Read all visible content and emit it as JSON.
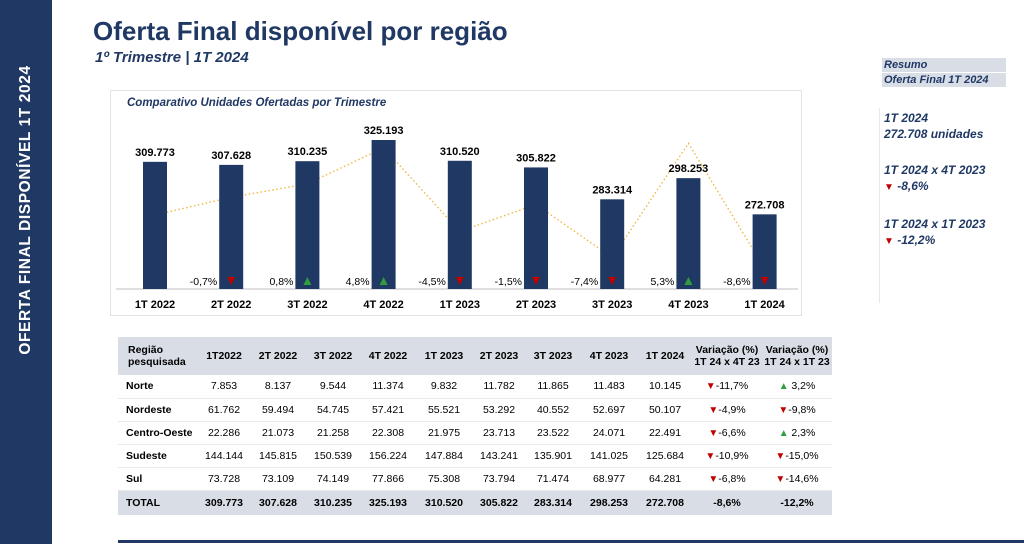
{
  "side_label": "OFERTA FINAL DISPONÍVEL   1T 2024",
  "header": {
    "title": "Oferta Final disponível por região",
    "subtitle": "1º Trimestre | 1T 2024"
  },
  "summary": {
    "head1": "Resumo",
    "head2": "Oferta Final  1T 2024",
    "block1_line1": "1T 2024",
    "block1_line2": "272.708  unidades",
    "block2_label": "1T 2024 x 4T 2023",
    "block2_value": "-8,6%",
    "block3_label": "1T 2024 x 1T 2023",
    "block3_value": "-12,2%"
  },
  "chart_data": {
    "type": "bar",
    "title": "Comparativo Unidades Ofertadas por Trimestre",
    "categories": [
      "1T 2022",
      "2T 2022",
      "3T 2022",
      "4T 2022",
      "1T 2023",
      "2T 2023",
      "3T 2023",
      "4T 2023",
      "1T 2024"
    ],
    "values": [
      309773,
      307628,
      310235,
      325193,
      310520,
      305822,
      283314,
      298253,
      272708
    ],
    "value_labels": [
      "309.773",
      "307.628",
      "310.235",
      "325.193",
      "310.520",
      "305.822",
      "283.314",
      "298.253",
      "272.708"
    ],
    "variation_labels": [
      "",
      "-0,7%",
      "0,8%",
      "4,8%",
      "-4,5%",
      "-1,5%",
      "-7,4%",
      "5,3%",
      "-8,6%"
    ],
    "variation_direction": [
      "",
      "down",
      "up",
      "up",
      "down",
      "down",
      "down",
      "up",
      "down"
    ],
    "variation_values": [
      null,
      -0.7,
      0.8,
      4.8,
      -4.5,
      -1.5,
      -7.4,
      5.3,
      -8.6
    ],
    "line_type": "dotted trend line of variation",
    "bar_color": "#1f3864",
    "line_color": "#f0b840",
    "up_color": "#2e9e3e",
    "down_color": "#c00000",
    "grid": false
  },
  "table": {
    "headers": [
      "Região\npesquisada",
      "1T2022",
      "2T 2022",
      "3T 2022",
      "4T 2022",
      "1T 2023",
      "2T 2023",
      "3T 2023",
      "4T 2023",
      "1T 2024",
      "Variação (%)\n1T 24 x 4T 23",
      "Variação (%)\n1T 24 x 1T 23"
    ],
    "rows": [
      {
        "region": "Norte",
        "values": [
          "7.853",
          "8.137",
          "9.544",
          "11.374",
          "9.832",
          "11.782",
          "11.865",
          "11.483",
          "10.145"
        ],
        "var1": "-11,7%",
        "var1_dir": "down",
        "var2": "3,2%",
        "var2_dir": "up"
      },
      {
        "region": "Nordeste",
        "values": [
          "61.762",
          "59.494",
          "54.745",
          "57.421",
          "55.521",
          "53.292",
          "40.552",
          "52.697",
          "50.107"
        ],
        "var1": "-4,9%",
        "var1_dir": "down",
        "var2": "-9,8%",
        "var2_dir": "down"
      },
      {
        "region": "Centro-Oeste",
        "values": [
          "22.286",
          "21.073",
          "21.258",
          "22.308",
          "21.975",
          "23.713",
          "23.522",
          "24.071",
          "22.491"
        ],
        "var1": "-6,6%",
        "var1_dir": "down",
        "var2": "2,3%",
        "var2_dir": "up"
      },
      {
        "region": "Sudeste",
        "values": [
          "144.144",
          "145.815",
          "150.539",
          "156.224",
          "147.884",
          "143.241",
          "135.901",
          "141.025",
          "125.684"
        ],
        "var1": "-10,9%",
        "var1_dir": "down",
        "var2": "-15,0%",
        "var2_dir": "down"
      },
      {
        "region": "Sul",
        "values": [
          "73.728",
          "73.109",
          "74.149",
          "77.866",
          "75.308",
          "73.794",
          "71.474",
          "68.977",
          "64.281"
        ],
        "var1": "-6,8%",
        "var1_dir": "down",
        "var2": "-14,6%",
        "var2_dir": "down"
      }
    ],
    "total": {
      "region": "TOTAL",
      "values": [
        "309.773",
        "307.628",
        "310.235",
        "325.193",
        "310.520",
        "305.822",
        "283.314",
        "298.253",
        "272.708"
      ],
      "var1": "-8,6%",
      "var2": "-12,2%"
    }
  }
}
